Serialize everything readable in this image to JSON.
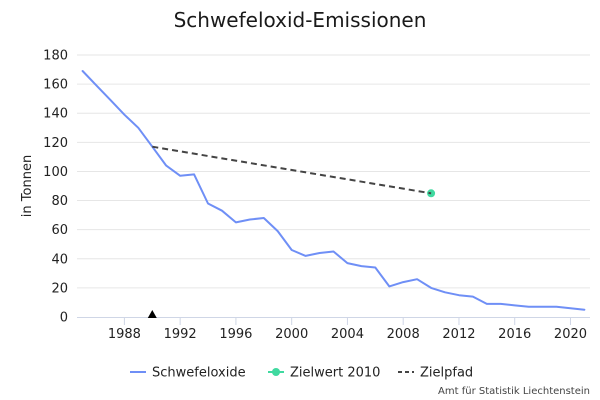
{
  "chart_data": {
    "type": "line",
    "title": "Schwefeloxid-Emissionen",
    "xlabel": "",
    "ylabel": "in Tonnen",
    "xlim": [
      1984.6,
      2021.4
    ],
    "ylim": [
      0,
      180
    ],
    "x_ticks": [
      1988,
      1992,
      1996,
      2000,
      2004,
      2008,
      2012,
      2016,
      2020
    ],
    "y_ticks": [
      0,
      20,
      40,
      60,
      80,
      100,
      120,
      140,
      160,
      180
    ],
    "grid": true,
    "legend_position": "bottom",
    "series": [
      {
        "name": "Schwefeloxide",
        "style": "line",
        "color": "#6f8ff6",
        "x": [
          1985,
          1986,
          1987,
          1988,
          1989,
          1990,
          1991,
          1992,
          1993,
          1994,
          1995,
          1996,
          1997,
          1998,
          1999,
          2000,
          2001,
          2002,
          2003,
          2004,
          2005,
          2006,
          2007,
          2008,
          2009,
          2010,
          2011,
          2012,
          2013,
          2014,
          2015,
          2016,
          2017,
          2018,
          2019,
          2020,
          2021
        ],
        "y": [
          169,
          159,
          149,
          139,
          130,
          117,
          104,
          97,
          98,
          78,
          73,
          65,
          67,
          68,
          59,
          46,
          42,
          44,
          45,
          37,
          35,
          34,
          21,
          24,
          26,
          20,
          17,
          15,
          14,
          9,
          9,
          8,
          7,
          7,
          7,
          6,
          5
        ]
      },
      {
        "name": "Zielwert 2010",
        "style": "point",
        "color": "#40d9a0",
        "x": [
          2010
        ],
        "y": [
          85
        ]
      },
      {
        "name": "Zielpfad",
        "style": "dashed",
        "color": "#444444",
        "x": [
          1990,
          2010
        ],
        "y": [
          117,
          85
        ]
      }
    ],
    "annotations": [
      {
        "type": "marker",
        "symbol": "triangle",
        "x": 1990,
        "y": 0,
        "color": "#000000"
      }
    ]
  },
  "credit": "Amt für Statistik Liechtenstein"
}
